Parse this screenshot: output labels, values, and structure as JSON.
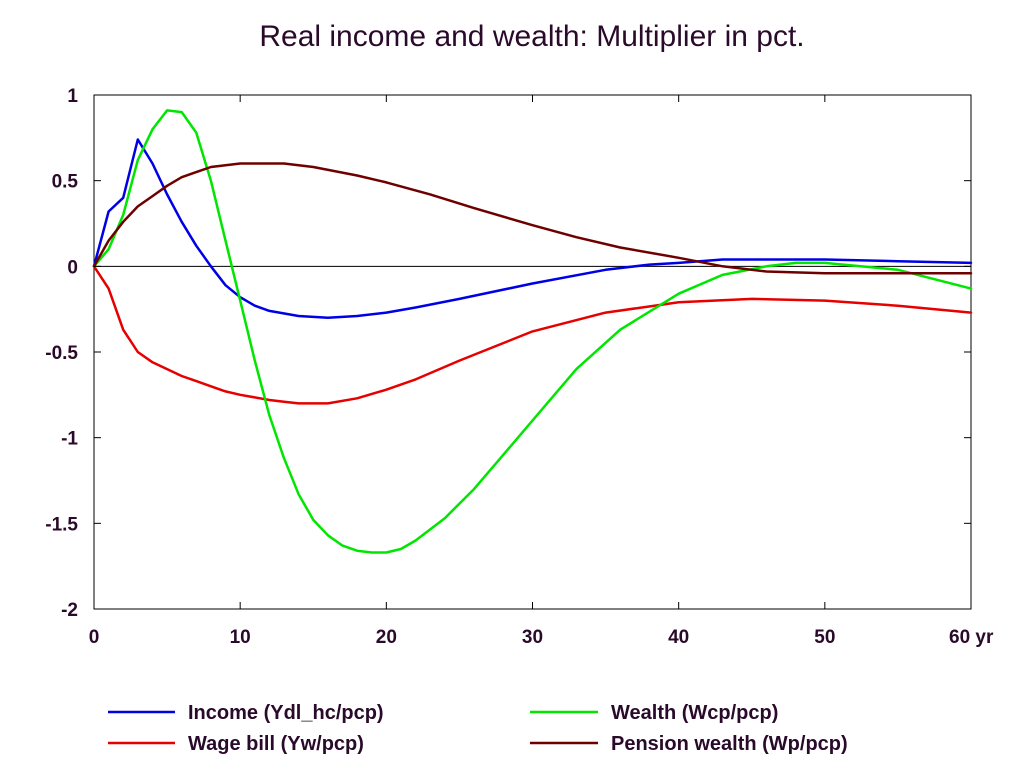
{
  "chart_data": {
    "type": "line",
    "title": "Real income and wealth: Multiplier in pct.",
    "xlabel": "",
    "ylabel": "",
    "x_unit_label": "yr",
    "xlim": [
      0,
      60
    ],
    "ylim": [
      -2,
      1
    ],
    "x_ticks": [
      0,
      10,
      20,
      30,
      40,
      50,
      60
    ],
    "x_tick_labels": [
      "0",
      "10",
      "20",
      "30",
      "40",
      "50",
      "60 yr"
    ],
    "y_ticks": [
      1,
      0.5,
      0,
      -0.5,
      -1,
      -1.5,
      -2
    ],
    "y_tick_labels": [
      "1",
      "0.5",
      "0",
      "-0.5",
      "-1",
      "-1.5",
      "-2"
    ],
    "grid": false,
    "zero_line": true,
    "legend_position": "bottom",
    "series": [
      {
        "name": "Income (Ydl_hc/pcp)",
        "color": "#0000e6",
        "x": [
          0,
          1,
          2,
          3,
          4,
          5,
          6,
          7,
          8,
          9,
          10,
          11,
          12,
          14,
          16,
          18,
          20,
          22,
          25,
          30,
          35,
          38,
          40,
          43,
          45,
          50,
          55,
          60
        ],
        "y": [
          0,
          0.32,
          0.4,
          0.74,
          0.6,
          0.42,
          0.26,
          0.12,
          0.0,
          -0.11,
          -0.18,
          -0.23,
          -0.26,
          -0.29,
          -0.3,
          -0.29,
          -0.27,
          -0.24,
          -0.19,
          -0.1,
          -0.02,
          0.01,
          0.02,
          0.04,
          0.04,
          0.04,
          0.03,
          0.02
        ]
      },
      {
        "name": "Wage bill (Yw/pcp)",
        "color": "#e60000",
        "x": [
          0,
          1,
          2,
          3,
          4,
          5,
          6,
          7,
          8,
          9,
          10,
          12,
          13,
          14,
          16,
          18,
          20,
          22,
          25,
          30,
          35,
          40,
          45,
          50,
          55,
          60
        ],
        "y": [
          0,
          -0.13,
          -0.37,
          -0.5,
          -0.56,
          -0.6,
          -0.64,
          -0.67,
          -0.7,
          -0.73,
          -0.75,
          -0.78,
          -0.79,
          -0.8,
          -0.8,
          -0.77,
          -0.72,
          -0.66,
          -0.55,
          -0.38,
          -0.27,
          -0.21,
          -0.19,
          -0.2,
          -0.23,
          -0.27
        ]
      },
      {
        "name": "Wealth (Wcp/pcp)",
        "color": "#00e600",
        "x": [
          0,
          1,
          2,
          3,
          4,
          5,
          6,
          7,
          8,
          9,
          10,
          11,
          12,
          13,
          14,
          15,
          16,
          17,
          18,
          19,
          20,
          21,
          22,
          24,
          26,
          28,
          30,
          33,
          36,
          40,
          43,
          46,
          48,
          50,
          55,
          60
        ],
        "y": [
          0,
          0.1,
          0.3,
          0.62,
          0.8,
          0.91,
          0.9,
          0.78,
          0.5,
          0.15,
          -0.2,
          -0.55,
          -0.87,
          -1.12,
          -1.33,
          -1.48,
          -1.57,
          -1.63,
          -1.66,
          -1.67,
          -1.67,
          -1.65,
          -1.6,
          -1.47,
          -1.3,
          -1.1,
          -0.9,
          -0.6,
          -0.37,
          -0.16,
          -0.05,
          0.0,
          0.02,
          0.02,
          -0.02,
          -0.13
        ]
      },
      {
        "name": "Pension wealth (Wp/pcp)",
        "color": "#6e0000",
        "x": [
          0,
          1,
          2,
          3,
          4,
          5,
          6,
          7,
          8,
          9,
          10,
          11,
          12,
          13,
          15,
          18,
          20,
          23,
          26,
          30,
          33,
          36,
          40,
          43,
          46,
          50,
          55,
          60
        ],
        "y": [
          0,
          0.15,
          0.26,
          0.35,
          0.41,
          0.47,
          0.52,
          0.55,
          0.58,
          0.59,
          0.6,
          0.6,
          0.6,
          0.6,
          0.58,
          0.53,
          0.49,
          0.42,
          0.34,
          0.24,
          0.17,
          0.11,
          0.05,
          0.0,
          -0.03,
          -0.04,
          -0.04,
          -0.04
        ]
      }
    ]
  }
}
